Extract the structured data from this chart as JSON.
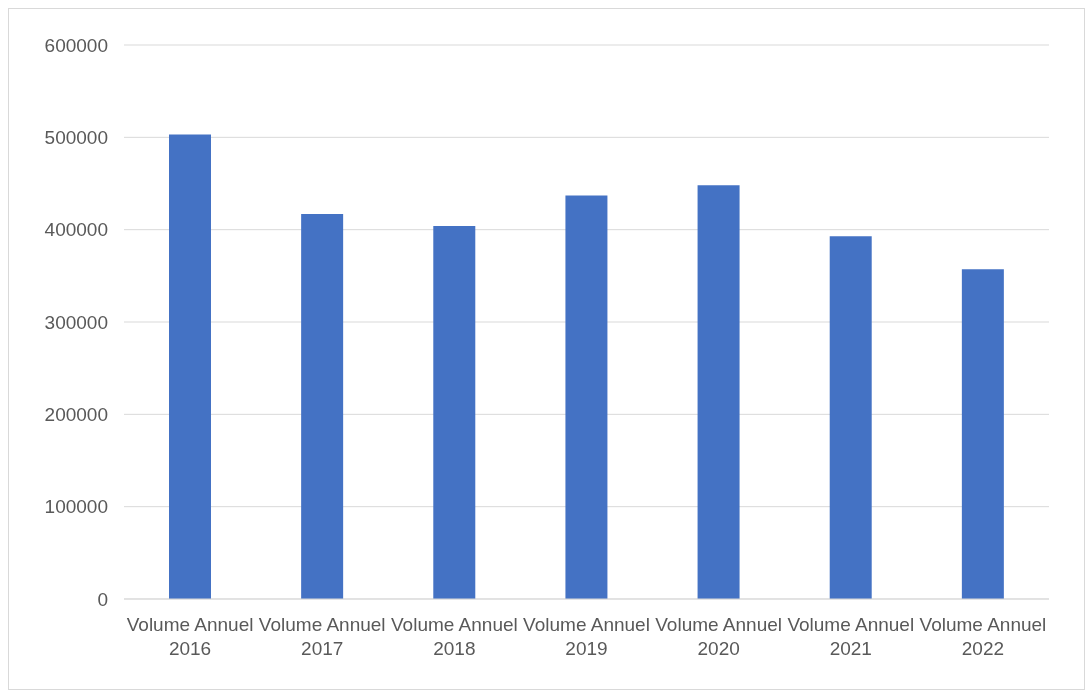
{
  "chart_data": {
    "type": "bar",
    "categories": [
      "Volume Annuel 2016",
      "Volume Annuel 2017",
      "Volume Annuel 2018",
      "Volume Annuel 2019",
      "Volume Annuel 2020",
      "Volume Annuel 2021",
      "Volume Annuel 2022"
    ],
    "values": [
      503000,
      417000,
      404000,
      437000,
      448000,
      393000,
      357000
    ],
    "color": "#4472c4",
    "ylim": [
      0,
      600000
    ],
    "yticks": [
      0,
      100000,
      200000,
      300000,
      400000,
      500000,
      600000
    ],
    "grid": "y"
  }
}
